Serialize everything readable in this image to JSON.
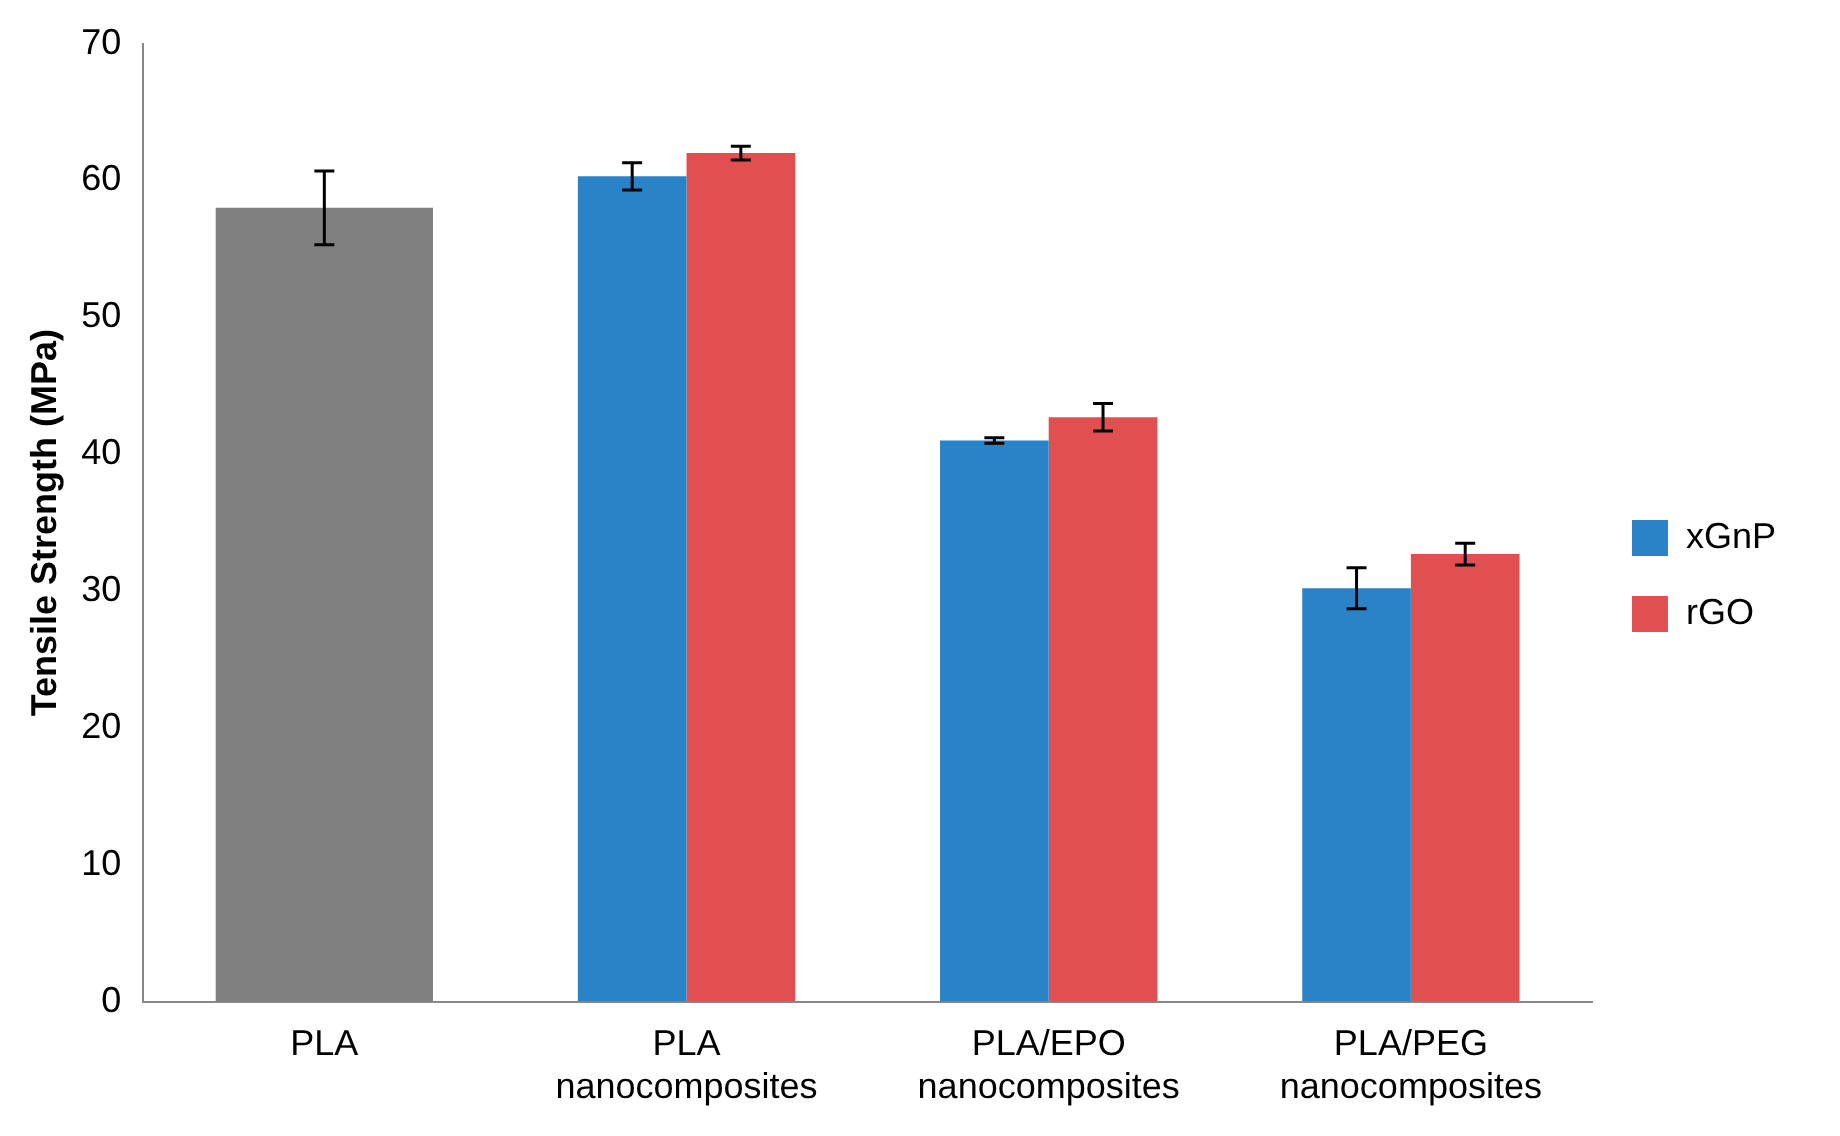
{
  "chart_data": {
    "type": "bar",
    "ylabel": "Tensile Strength (MPa)",
    "categories": [
      "PLA",
      "PLA\nnanocomposites",
      "PLA/EPO\nnanocomposites",
      "PLA/PEG\nnanocomposites"
    ],
    "series": [
      {
        "color": "#808080",
        "values": [
          58,
          null,
          null,
          null
        ],
        "errors": [
          2.7,
          null,
          null,
          null
        ]
      },
      {
        "name": "xGnP",
        "color": "#2a83c6",
        "values": [
          null,
          60.3,
          41.0,
          30.2
        ],
        "errors": [
          null,
          1.0,
          0.2,
          1.5
        ]
      },
      {
        "name": "rGO",
        "color": "#e05050",
        "values": [
          null,
          62.0,
          42.7,
          32.7
        ],
        "errors": [
          null,
          0.5,
          1.0,
          0.8
        ]
      }
    ],
    "ylim": [
      0,
      70
    ],
    "yticks": [
      0,
      10,
      20,
      30,
      40,
      50,
      60,
      70
    ],
    "grid": false,
    "legend": "right"
  }
}
